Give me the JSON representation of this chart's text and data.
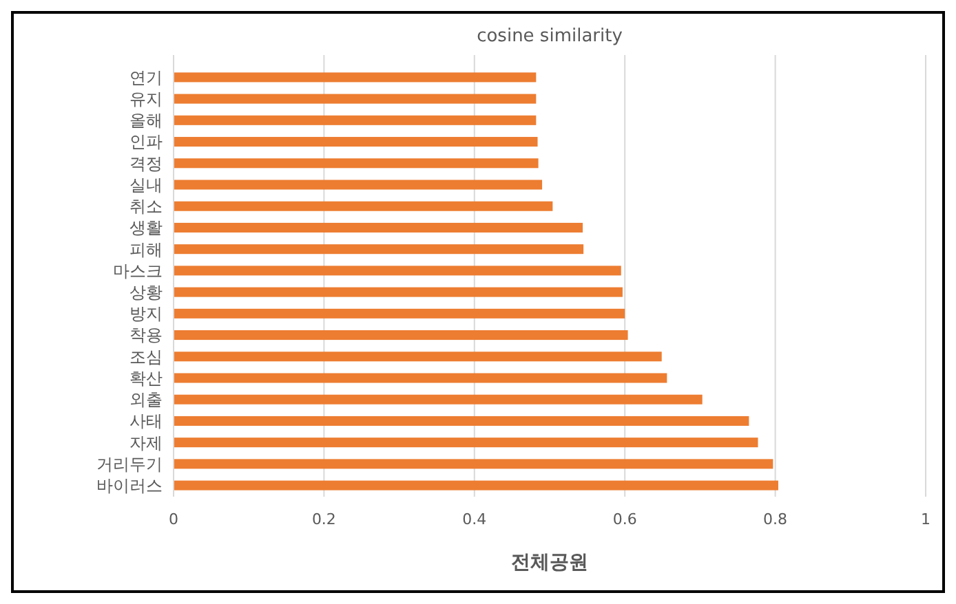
{
  "chart_data": {
    "type": "bar",
    "orientation": "horizontal",
    "title": "cosine similarity",
    "xlabel": "전체공원",
    "categories": [
      "연기",
      "유지",
      "올해",
      "인파",
      "격정",
      "실내",
      "취소",
      "생활",
      "피해",
      "마스크",
      "상황",
      "방지",
      "착용",
      "조심",
      "확산",
      "외출",
      "사태",
      "자제",
      "거리두기",
      "바이러스"
    ],
    "values": [
      0.482,
      0.482,
      0.482,
      0.484,
      0.485,
      0.49,
      0.504,
      0.544,
      0.545,
      0.595,
      0.597,
      0.6,
      0.604,
      0.649,
      0.656,
      0.703,
      0.765,
      0.777,
      0.797,
      0.804
    ],
    "color": "#ed7d31",
    "xlim": [
      0,
      1
    ],
    "xticks": [
      0,
      0.2,
      0.4,
      0.6,
      0.8,
      1
    ],
    "grid": "x"
  }
}
